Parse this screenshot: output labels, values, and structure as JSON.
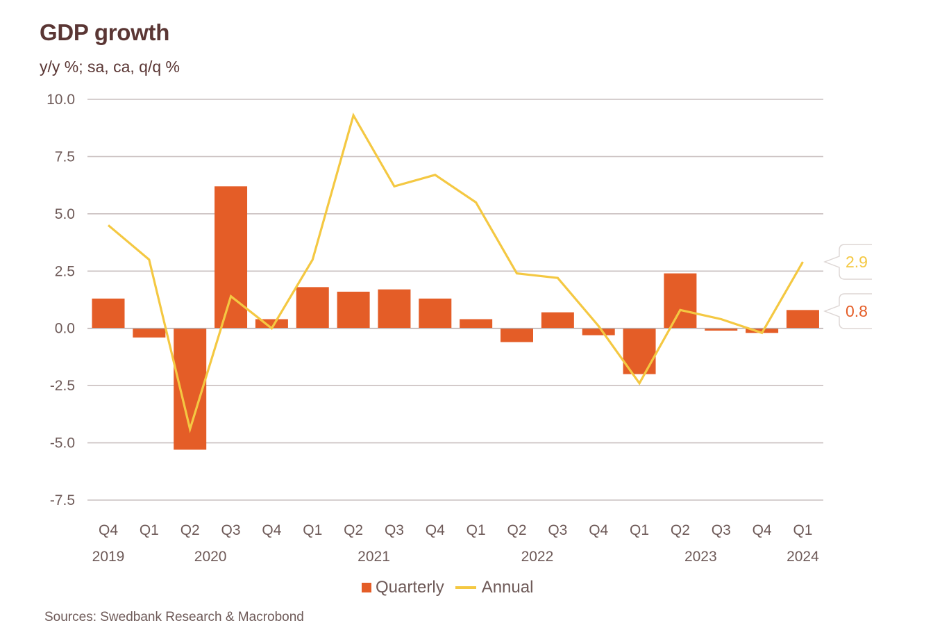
{
  "header": {
    "title": "GDP growth",
    "subtitle": "y/y %; sa, ca, q/q %"
  },
  "legend": {
    "items": [
      {
        "label": "Quarterly",
        "kind": "bar",
        "color": "#e45d27"
      },
      {
        "label": "Annual",
        "kind": "line",
        "color": "#f4c842"
      }
    ]
  },
  "footer": {
    "source": "Sources: Swedbank Research & Macrobond"
  },
  "colors": {
    "quarterly": "#e45d27",
    "annual": "#f4c842",
    "grid": "#c9bfbf",
    "text": "#6e5a58",
    "title": "#5a3634"
  },
  "chart_data": {
    "type": "bar",
    "title": "GDP growth",
    "subtitle": "y/y %; sa, ca, q/q %",
    "xlabel": "",
    "ylabel": "",
    "ylim": [
      -7.5,
      10.0
    ],
    "yticks": [
      "10.0",
      "7.5",
      "5.0",
      "2.5",
      "0.0",
      "-2.5",
      "-5.0",
      "-7.5"
    ],
    "ytick_values": [
      10.0,
      7.5,
      5.0,
      2.5,
      0.0,
      -2.5,
      -5.0,
      -7.5
    ],
    "grid": true,
    "legend_position": "bottom-center",
    "categories": [
      "Q4 2019",
      "Q1 2020",
      "Q2 2020",
      "Q3 2020",
      "Q4 2020",
      "Q1 2021",
      "Q2 2021",
      "Q3 2021",
      "Q4 2021",
      "Q1 2022",
      "Q2 2022",
      "Q3 2022",
      "Q4 2022",
      "Q1 2023",
      "Q2 2023",
      "Q3 2023",
      "Q4 2023",
      "Q1 2024"
    ],
    "quarter_labels": [
      "Q4",
      "Q1",
      "Q2",
      "Q3",
      "Q4",
      "Q1",
      "Q2",
      "Q3",
      "Q4",
      "Q1",
      "Q2",
      "Q3",
      "Q4",
      "Q1",
      "Q2",
      "Q3",
      "Q4",
      "Q1"
    ],
    "year_labels": [
      {
        "label": "2019",
        "at_index": 0
      },
      {
        "label": "2020",
        "at_index": 2.5
      },
      {
        "label": "2021",
        "at_index": 6.5
      },
      {
        "label": "2022",
        "at_index": 10.5
      },
      {
        "label": "2023",
        "at_index": 14.5
      },
      {
        "label": "2024",
        "at_index": 17
      }
    ],
    "series": [
      {
        "name": "Quarterly",
        "type": "bar",
        "color": "#e45d27",
        "values": [
          1.3,
          -0.4,
          -5.3,
          6.2,
          0.4,
          1.8,
          1.6,
          1.7,
          1.3,
          0.4,
          -0.6,
          0.7,
          -0.3,
          -2.0,
          2.4,
          -0.1,
          -0.2,
          0.8
        ]
      },
      {
        "name": "Annual",
        "type": "line",
        "color": "#f4c842",
        "values": [
          4.5,
          3.0,
          -4.4,
          1.4,
          0.0,
          3.0,
          9.3,
          6.2,
          6.7,
          5.5,
          2.4,
          2.2,
          0.1,
          -2.4,
          0.8,
          0.4,
          -0.2,
          2.9
        ]
      }
    ],
    "callouts": [
      {
        "series": "Annual",
        "label": "2.9",
        "value": 2.9
      },
      {
        "series": "Quarterly",
        "label": "0.8",
        "value": 0.8
      }
    ]
  }
}
